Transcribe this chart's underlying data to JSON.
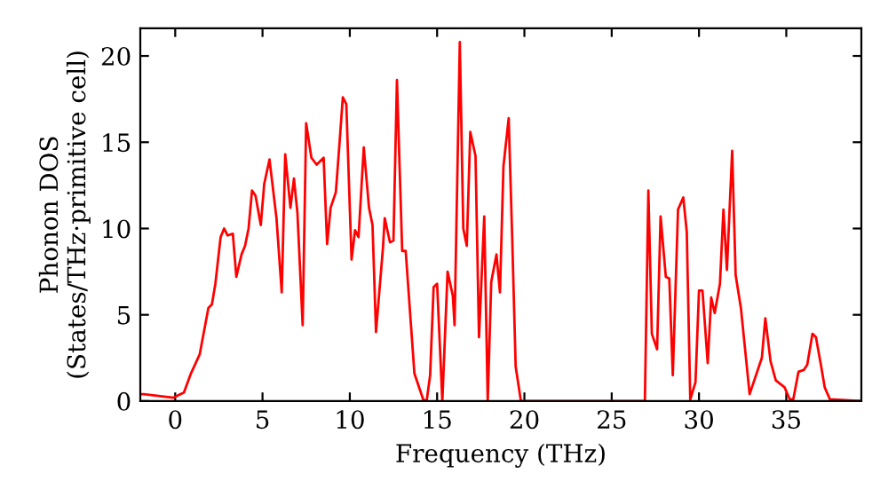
{
  "chart_data": {
    "type": "line",
    "xlabel": "Frequency (THz)",
    "ylabel": "Phonon DOS\n(States/THz·primitive cell)",
    "xlim": [
      -2,
      39.3
    ],
    "ylim": [
      0,
      21.6
    ],
    "xticks": [
      0,
      5,
      10,
      15,
      20,
      25,
      30,
      35
    ],
    "yticks": [
      0,
      5,
      10,
      15,
      20
    ],
    "grid": false,
    "legend": false,
    "marker": "none",
    "line_style": "solid",
    "series": [
      {
        "color": "#ff0000",
        "x": [
          -2,
          -1.8,
          -0.1,
          0.5,
          0.9,
          1.4,
          1.9,
          2.1,
          2.3,
          2.6,
          2.8,
          3.0,
          3.3,
          3.5,
          3.8,
          4.0,
          4.2,
          4.4,
          4.6,
          4.9,
          5.1,
          5.4,
          5.8,
          6.1,
          6.3,
          6.6,
          6.8,
          7.0,
          7.3,
          7.5,
          7.8,
          8.1,
          8.4,
          8.5,
          8.7,
          8.9,
          9.2,
          9.4,
          9.6,
          9.8,
          10.1,
          10.3,
          10.5,
          10.8,
          11.1,
          11.3,
          11.5,
          11.9,
          12.0,
          12.3,
          12.5,
          12.7,
          13.0,
          13.2,
          13.7,
          14.2,
          14.4,
          14.6,
          14.8,
          15.0,
          15.3,
          15.6,
          15.9,
          16.0,
          16.3,
          16.5,
          16.7,
          16.9,
          17.2,
          17.4,
          17.7,
          17.9,
          18.1,
          18.4,
          18.6,
          18.8,
          19.1,
          19.3,
          19.5,
          19.8,
          26.9,
          27.1,
          27.3,
          27.6,
          27.8,
          28.1,
          28.3,
          28.5,
          28.8,
          29.1,
          29.3,
          29.5,
          29.8,
          30.0,
          30.2,
          30.5,
          30.7,
          30.9,
          31.2,
          31.4,
          31.6,
          31.9,
          32.1,
          32.4,
          32.9,
          33.2,
          33.6,
          33.8,
          34.1,
          34.4,
          34.9,
          35.2,
          35.4,
          35.7,
          36.0,
          36.2,
          36.5,
          36.7,
          37.0,
          37.2,
          37.5,
          39.3
        ],
        "values": [
          0.4,
          0.4,
          0.2,
          0.5,
          1.6,
          2.7,
          5.4,
          5.6,
          6.8,
          9.5,
          10.0,
          9.6,
          9.7,
          7.2,
          8.5,
          9.0,
          10.0,
          12.2,
          11.9,
          10.2,
          12.6,
          14.0,
          10.6,
          6.3,
          14.3,
          11.2,
          12.9,
          10.9,
          4.4,
          16.1,
          14.1,
          13.7,
          14.0,
          14.1,
          9.1,
          11.2,
          12.1,
          14.8,
          17.6,
          17.2,
          8.2,
          9.9,
          9.5,
          14.7,
          11.2,
          10.2,
          4.0,
          8.9,
          10.6,
          9.2,
          9.3,
          18.6,
          8.7,
          8.7,
          1.6,
          0.1,
          0,
          1.5,
          6.6,
          6.8,
          0,
          7.5,
          6.1,
          4.4,
          20.8,
          10.0,
          9.0,
          15.6,
          14.2,
          3.7,
          10.7,
          0,
          6.9,
          8.5,
          6.3,
          13.6,
          16.4,
          9.5,
          2.0,
          0,
          0,
          12.2,
          3.9,
          3.0,
          10.7,
          7.2,
          7.1,
          1.5,
          11.1,
          11.8,
          9.8,
          0.1,
          1.1,
          6.4,
          6.4,
          2.2,
          6.0,
          5.1,
          6.8,
          11.1,
          7.6,
          14.5,
          7.3,
          5.4,
          0.4,
          1.3,
          2.5,
          4.8,
          2.3,
          1.2,
          0.8,
          0.1,
          0.1,
          1.7,
          1.8,
          2.1,
          3.9,
          3.7,
          2.0,
          0.8,
          0.1,
          0
        ]
      }
    ]
  }
}
